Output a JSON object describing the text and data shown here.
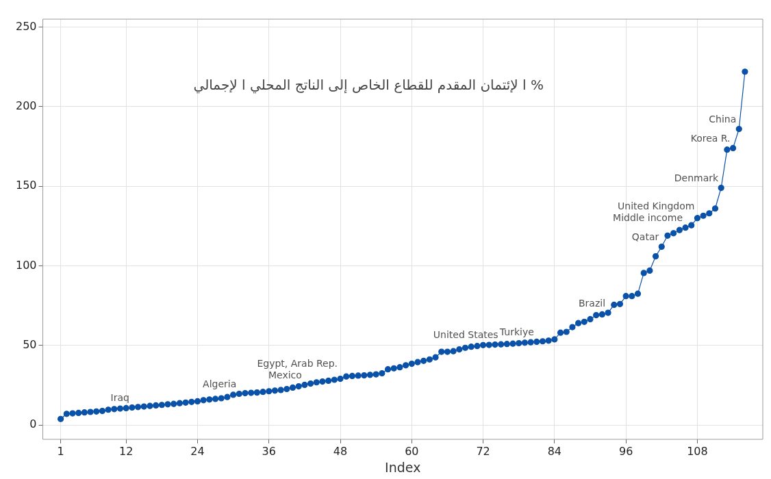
{
  "chart_data": {
    "type": "line",
    "title": "ا لإئتمان المقدم للقطاع الخاص إلى الناتج المحلي ا لإجمالي %",
    "xlabel": "Index",
    "x": [
      1,
      2,
      3,
      4,
      5,
      6,
      7,
      8,
      9,
      10,
      11,
      12,
      13,
      14,
      15,
      16,
      17,
      18,
      19,
      20,
      21,
      22,
      23,
      24,
      25,
      26,
      27,
      28,
      29,
      30,
      31,
      32,
      33,
      34,
      35,
      36,
      37,
      38,
      39,
      40,
      41,
      42,
      43,
      44,
      45,
      46,
      47,
      48,
      49,
      50,
      51,
      52,
      53,
      54,
      55,
      56,
      57,
      58,
      59,
      60,
      61,
      62,
      63,
      64,
      65,
      66,
      67,
      68,
      69,
      70,
      71,
      72,
      73,
      74,
      75,
      76,
      77,
      78,
      79,
      80,
      81,
      82,
      83,
      84,
      85,
      86,
      87,
      88,
      89,
      90,
      91,
      92,
      93,
      94,
      95,
      96,
      97,
      98,
      99,
      100,
      101,
      102,
      103,
      104,
      105,
      106,
      107,
      108,
      109,
      110,
      111,
      112,
      113,
      114,
      115,
      116
    ],
    "series": [
      {
        "color": "#0a51a8",
        "values": [
          3.8,
          7,
          7.3,
          7.6,
          7.9,
          8.2,
          8.5,
          8.8,
          9.6,
          10,
          10.3,
          10.6,
          11,
          11.3,
          11.6,
          12,
          12.3,
          12.6,
          13,
          13.3,
          13.7,
          14.1,
          14.5,
          14.9,
          15.6,
          16,
          16.4,
          16.8,
          17.6,
          19,
          19.6,
          20,
          20.2,
          20.4,
          20.8,
          21.2,
          21.6,
          22,
          22.6,
          23.5,
          24.3,
          25.2,
          26,
          26.8,
          27.3,
          27.8,
          28.4,
          29,
          30.5,
          30.8,
          31,
          31.2,
          31.5,
          31.8,
          32.5,
          35,
          35.6,
          36.3,
          37.5,
          38.5,
          39.5,
          40.3,
          41.2,
          42.5,
          46,
          46,
          46.4,
          47.5,
          48.5,
          49.2,
          49.6,
          50.2,
          50.3,
          50.5,
          50.7,
          50.9,
          51.1,
          51.4,
          51.7,
          52,
          52.3,
          52.6,
          53,
          53.8,
          58,
          58.5,
          61.5,
          64,
          64.8,
          66.5,
          69,
          69.5,
          70.5,
          75.5,
          76,
          81,
          81,
          82.5,
          95.5,
          97,
          106,
          112,
          119,
          120.5,
          122.5,
          124,
          125.5,
          130,
          131.5,
          133,
          136,
          149,
          173,
          174,
          186,
          222
        ]
      }
    ],
    "xlim": [
      -2,
      119
    ],
    "ylim": [
      -9,
      255
    ],
    "xticks": [
      1,
      12,
      24,
      36,
      48,
      60,
      72,
      84,
      96,
      108
    ],
    "yticks": [
      0,
      50,
      100,
      150,
      200,
      250
    ],
    "grid": true,
    "marker": "circle",
    "line_style": "solid",
    "legend": false,
    "annotations": [
      {
        "text": "Iraq",
        "x": 13,
        "y": 11
      },
      {
        "text": "Algeria",
        "x": 31,
        "y": 19.6
      },
      {
        "text": "Mexico",
        "x": 42,
        "y": 25.2
      },
      {
        "text": "Egypt, Arab Rep.",
        "x": 48,
        "y": 29
      },
      {
        "text": "United States",
        "x": 75,
        "y": 50.7
      },
      {
        "text": "Turkiye",
        "x": 81,
        "y": 52.3
      },
      {
        "text": "Brazil",
        "x": 93,
        "y": 70.5
      },
      {
        "text": "Qatar",
        "x": 102,
        "y": 112
      },
      {
        "text": "Middle income",
        "x": 106,
        "y": 124
      },
      {
        "text": "United Kingdom",
        "x": 108,
        "y": 130
      },
      {
        "text": "Denmark",
        "x": 112,
        "y": 149
      },
      {
        "text": "Korea R.",
        "x": 114,
        "y": 174
      },
      {
        "text": "China",
        "x": 115,
        "y": 186
      }
    ]
  }
}
